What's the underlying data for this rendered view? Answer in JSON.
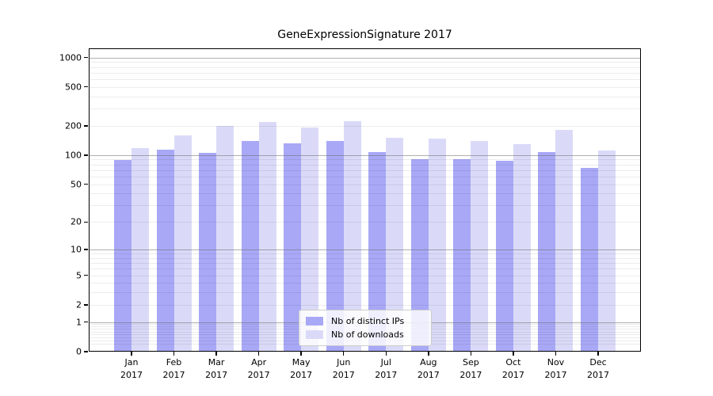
{
  "chart_data": {
    "type": "bar",
    "title": "GeneExpressionSignature 2017",
    "categories": [
      "Jan",
      "Feb",
      "Mar",
      "Apr",
      "May",
      "Jun",
      "Jul",
      "Aug",
      "Sep",
      "Oct",
      "Nov",
      "Dec"
    ],
    "year_label": "2017",
    "series": [
      {
        "name": "Nb of distinct IPs",
        "color": "#a8a8f7",
        "values": [
          89,
          113,
          106,
          141,
          132,
          141,
          108,
          90,
          91,
          88,
          107,
          74
        ]
      },
      {
        "name": "Nb of downloads",
        "color": "#dadaf8",
        "values": [
          118,
          159,
          198,
          219,
          193,
          222,
          152,
          149,
          139,
          129,
          181,
          111
        ]
      }
    ],
    "y_axis": {
      "scale": "log1p",
      "tick_values": [
        0,
        1,
        2,
        5,
        10,
        20,
        50,
        100,
        200,
        500,
        1000
      ],
      "major_grid_values": [
        1,
        10,
        100,
        1000
      ],
      "ylim": [
        0,
        1240
      ]
    },
    "grid": true,
    "legend_position": "lower center"
  }
}
